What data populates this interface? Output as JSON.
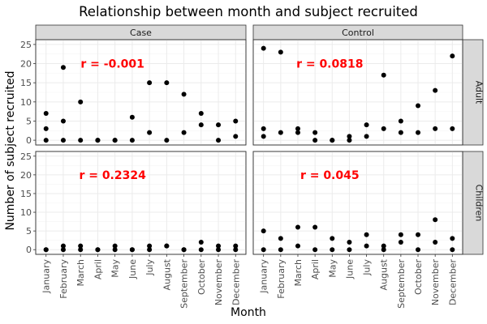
{
  "chart_data": {
    "type": "scatter",
    "title": "Relationship between month and subject recruited",
    "xlabel": "Month",
    "ylabel": "Number of subject recruited",
    "categories": [
      "January",
      "February",
      "March",
      "April",
      "May",
      "June",
      "July",
      "August",
      "September",
      "October",
      "November",
      "December"
    ],
    "ylim": [
      0,
      25
    ],
    "yticks": [
      0,
      5,
      10,
      15,
      20,
      25
    ],
    "grid": true,
    "facet_columns": [
      "Case",
      "Control"
    ],
    "facet_rows": [
      "Adult",
      "Children"
    ],
    "panels": [
      {
        "column": "Case",
        "row": "Adult",
        "annotation": "r =  -0.001",
        "points": [
          [
            "January",
            7
          ],
          [
            "January",
            3
          ],
          [
            "January",
            0
          ],
          [
            "February",
            19
          ],
          [
            "February",
            5
          ],
          [
            "February",
            0
          ],
          [
            "March",
            10
          ],
          [
            "March",
            0
          ],
          [
            "April",
            0
          ],
          [
            "April",
            0
          ],
          [
            "May",
            0
          ],
          [
            "May",
            0
          ],
          [
            "June",
            6
          ],
          [
            "June",
            0
          ],
          [
            "July",
            15
          ],
          [
            "July",
            2
          ],
          [
            "August",
            15
          ],
          [
            "August",
            0
          ],
          [
            "September",
            12
          ],
          [
            "September",
            2
          ],
          [
            "October",
            7
          ],
          [
            "October",
            4
          ],
          [
            "November",
            4
          ],
          [
            "November",
            0
          ],
          [
            "December",
            5
          ],
          [
            "December",
            1
          ]
        ]
      },
      {
        "column": "Control",
        "row": "Adult",
        "annotation": "r =  0.0818",
        "points": [
          [
            "January",
            24
          ],
          [
            "January",
            3
          ],
          [
            "January",
            1
          ],
          [
            "February",
            23
          ],
          [
            "February",
            2
          ],
          [
            "March",
            3
          ],
          [
            "March",
            2
          ],
          [
            "April",
            2
          ],
          [
            "April",
            0
          ],
          [
            "May",
            0
          ],
          [
            "May",
            0
          ],
          [
            "June",
            1
          ],
          [
            "June",
            0
          ],
          [
            "July",
            4
          ],
          [
            "July",
            1
          ],
          [
            "August",
            17
          ],
          [
            "August",
            3
          ],
          [
            "September",
            5
          ],
          [
            "September",
            2
          ],
          [
            "October",
            9
          ],
          [
            "October",
            2
          ],
          [
            "November",
            13
          ],
          [
            "November",
            3
          ],
          [
            "December",
            22
          ],
          [
            "December",
            3
          ]
        ]
      },
      {
        "column": "Case",
        "row": "Children",
        "annotation": "r =  0.2324",
        "points": [
          [
            "January",
            0
          ],
          [
            "January",
            0
          ],
          [
            "February",
            1
          ],
          [
            "February",
            0
          ],
          [
            "March",
            1
          ],
          [
            "March",
            0
          ],
          [
            "April",
            0
          ],
          [
            "April",
            0
          ],
          [
            "May",
            1
          ],
          [
            "May",
            0
          ],
          [
            "June",
            0
          ],
          [
            "June",
            0
          ],
          [
            "July",
            1
          ],
          [
            "July",
            0
          ],
          [
            "August",
            1
          ],
          [
            "August",
            1
          ],
          [
            "September",
            0
          ],
          [
            "September",
            0
          ],
          [
            "October",
            2
          ],
          [
            "October",
            0
          ],
          [
            "November",
            1
          ],
          [
            "November",
            0
          ],
          [
            "December",
            1
          ],
          [
            "December",
            0
          ]
        ]
      },
      {
        "column": "Control",
        "row": "Children",
        "annotation": "r =  0.045",
        "points": [
          [
            "January",
            5
          ],
          [
            "January",
            0
          ],
          [
            "February",
            3
          ],
          [
            "February",
            0
          ],
          [
            "March",
            6
          ],
          [
            "March",
            1
          ],
          [
            "April",
            6
          ],
          [
            "April",
            0
          ],
          [
            "May",
            3
          ],
          [
            "May",
            0
          ],
          [
            "June",
            2
          ],
          [
            "June",
            0
          ],
          [
            "July",
            4
          ],
          [
            "July",
            1
          ],
          [
            "August",
            1
          ],
          [
            "August",
            0
          ],
          [
            "September",
            4
          ],
          [
            "September",
            2
          ],
          [
            "October",
            4
          ],
          [
            "October",
            0
          ],
          [
            "November",
            8
          ],
          [
            "November",
            2
          ],
          [
            "December",
            3
          ],
          [
            "December",
            0
          ]
        ]
      }
    ]
  }
}
